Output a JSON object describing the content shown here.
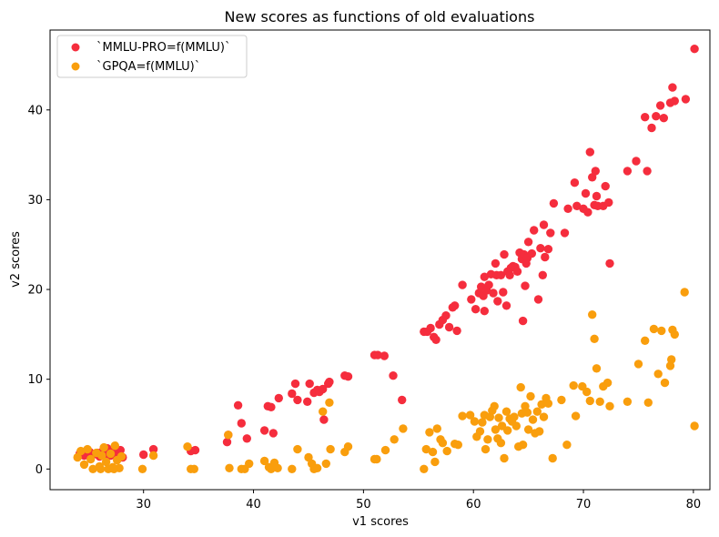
{
  "chart_data": {
    "type": "scatter",
    "title": "New scores as functions of old evaluations",
    "xlabel": "v1 scores",
    "ylabel": "v2 scores",
    "xlim": [
      21.5,
      81.5
    ],
    "ylim": [
      -2.3,
      48.9
    ],
    "xticks": [
      30,
      40,
      50,
      60,
      70,
      80
    ],
    "yticks": [
      0,
      10,
      20,
      30,
      40
    ],
    "grid": false,
    "legend_position": "top-left",
    "series": [
      {
        "name": "`MMLU-PRO=f(MMLU)`",
        "color": "#f52d3d",
        "points": [
          [
            24.2,
            1.7
          ],
          [
            24.6,
            1.5
          ],
          [
            25.1,
            1.9
          ],
          [
            25.4,
            1.6
          ],
          [
            25.8,
            1.8
          ],
          [
            26.0,
            1.4
          ],
          [
            26.3,
            2.0
          ],
          [
            26.5,
            1.7
          ],
          [
            26.7,
            2.3
          ],
          [
            27.0,
            1.5
          ],
          [
            27.2,
            1.9
          ],
          [
            27.6,
            1.4
          ],
          [
            27.9,
            2.1
          ],
          [
            28.1,
            1.3
          ],
          [
            30.0,
            1.6
          ],
          [
            30.9,
            2.2
          ],
          [
            34.3,
            2.0
          ],
          [
            34.7,
            2.1
          ],
          [
            37.6,
            3.0
          ],
          [
            37.7,
            3.8
          ],
          [
            38.6,
            7.1
          ],
          [
            38.9,
            5.1
          ],
          [
            39.4,
            3.4
          ],
          [
            41.0,
            4.3
          ],
          [
            41.3,
            7.0
          ],
          [
            41.6,
            6.9
          ],
          [
            41.8,
            4.0
          ],
          [
            42.3,
            7.9
          ],
          [
            43.5,
            8.4
          ],
          [
            43.8,
            9.5
          ],
          [
            44.0,
            7.7
          ],
          [
            44.9,
            7.5
          ],
          [
            45.1,
            9.5
          ],
          [
            45.5,
            8.5
          ],
          [
            45.8,
            8.8
          ],
          [
            46.0,
            8.6
          ],
          [
            46.3,
            8.9
          ],
          [
            46.4,
            5.5
          ],
          [
            46.8,
            9.5
          ],
          [
            46.9,
            9.7
          ],
          [
            48.3,
            10.4
          ],
          [
            48.6,
            10.3
          ],
          [
            51.0,
            12.7
          ],
          [
            51.3,
            12.7
          ],
          [
            51.9,
            12.6
          ],
          [
            52.7,
            10.4
          ],
          [
            53.5,
            7.7
          ],
          [
            55.5,
            15.3
          ],
          [
            55.8,
            15.3
          ],
          [
            56.1,
            15.7
          ],
          [
            56.4,
            14.7
          ],
          [
            56.6,
            14.4
          ],
          [
            56.9,
            16.1
          ],
          [
            57.2,
            16.6
          ],
          [
            57.5,
            17.1
          ],
          [
            57.8,
            15.8
          ],
          [
            58.1,
            18.0
          ],
          [
            58.3,
            18.2
          ],
          [
            58.5,
            15.4
          ],
          [
            59.0,
            20.5
          ],
          [
            59.8,
            18.9
          ],
          [
            60.2,
            17.8
          ],
          [
            60.5,
            19.6
          ],
          [
            60.7,
            20.3
          ],
          [
            60.9,
            19.3
          ],
          [
            61.0,
            21.4
          ],
          [
            61.0,
            17.6
          ],
          [
            61.2,
            19.9
          ],
          [
            61.4,
            20.5
          ],
          [
            61.6,
            21.7
          ],
          [
            61.8,
            19.6
          ],
          [
            62.0,
            22.9
          ],
          [
            62.1,
            21.6
          ],
          [
            62.2,
            18.7
          ],
          [
            62.5,
            21.6
          ],
          [
            62.7,
            19.7
          ],
          [
            62.8,
            23.9
          ],
          [
            63.0,
            18.2
          ],
          [
            63.1,
            22.0
          ],
          [
            63.3,
            21.6
          ],
          [
            63.4,
            22.4
          ],
          [
            63.6,
            22.6
          ],
          [
            63.8,
            22.5
          ],
          [
            64.0,
            22.0
          ],
          [
            64.2,
            24.1
          ],
          [
            64.4,
            23.4
          ],
          [
            64.5,
            16.5
          ],
          [
            64.6,
            23.9
          ],
          [
            64.7,
            20.4
          ],
          [
            64.8,
            22.9
          ],
          [
            64.9,
            23.5
          ],
          [
            65.0,
            25.3
          ],
          [
            65.3,
            24.0
          ],
          [
            65.5,
            26.6
          ],
          [
            65.9,
            18.9
          ],
          [
            66.1,
            24.6
          ],
          [
            66.3,
            21.6
          ],
          [
            66.4,
            27.2
          ],
          [
            66.5,
            23.6
          ],
          [
            66.8,
            24.5
          ],
          [
            67.0,
            26.3
          ],
          [
            67.3,
            29.6
          ],
          [
            68.3,
            26.3
          ],
          [
            68.6,
            29.0
          ],
          [
            69.2,
            31.9
          ],
          [
            69.4,
            29.3
          ],
          [
            70.0,
            29.0
          ],
          [
            70.2,
            30.7
          ],
          [
            70.4,
            28.6
          ],
          [
            70.6,
            35.3
          ],
          [
            70.8,
            32.5
          ],
          [
            71.0,
            29.4
          ],
          [
            71.1,
            33.2
          ],
          [
            71.2,
            30.4
          ],
          [
            71.3,
            29.3
          ],
          [
            71.8,
            29.3
          ],
          [
            72.0,
            31.5
          ],
          [
            72.3,
            29.7
          ],
          [
            72.4,
            22.9
          ],
          [
            74.0,
            33.2
          ],
          [
            74.8,
            34.3
          ],
          [
            75.6,
            39.2
          ],
          [
            75.8,
            33.2
          ],
          [
            76.2,
            38.0
          ],
          [
            76.6,
            39.3
          ],
          [
            77.0,
            40.5
          ],
          [
            77.3,
            39.1
          ],
          [
            77.9,
            40.8
          ],
          [
            78.1,
            42.5
          ],
          [
            78.3,
            41.0
          ],
          [
            79.3,
            41.2
          ],
          [
            80.1,
            46.8
          ]
        ]
      },
      {
        "name": "`GPQA=f(MMLU)`",
        "color": "#f99e0d",
        "points": [
          [
            24.0,
            1.3
          ],
          [
            24.3,
            2.0
          ],
          [
            24.6,
            0.5
          ],
          [
            24.9,
            2.2
          ],
          [
            25.2,
            1.1
          ],
          [
            25.4,
            0.0
          ],
          [
            25.7,
            1.8
          ],
          [
            26.0,
            0.3
          ],
          [
            26.2,
            1.5
          ],
          [
            26.4,
            2.4
          ],
          [
            26.6,
            0.8
          ],
          [
            26.8,
            0.0
          ],
          [
            27.0,
            1.7
          ],
          [
            27.2,
            0.2
          ],
          [
            27.4,
            2.6
          ],
          [
            27.6,
            1.0
          ],
          [
            27.8,
            0.1
          ],
          [
            28.0,
            1.4
          ],
          [
            26.1,
            0.0
          ],
          [
            27.3,
            0.0
          ],
          [
            29.9,
            0.0
          ],
          [
            30.9,
            1.5
          ],
          [
            34.0,
            2.5
          ],
          [
            34.3,
            0.0
          ],
          [
            34.6,
            0.0
          ],
          [
            37.7,
            3.8
          ],
          [
            37.8,
            0.1
          ],
          [
            38.9,
            0.0
          ],
          [
            39.2,
            0.0
          ],
          [
            39.6,
            0.6
          ],
          [
            41.0,
            0.9
          ],
          [
            41.4,
            0.2
          ],
          [
            41.6,
            0.0
          ],
          [
            41.9,
            0.7
          ],
          [
            42.2,
            0.1
          ],
          [
            43.5,
            0.0
          ],
          [
            44.0,
            2.2
          ],
          [
            45.0,
            1.3
          ],
          [
            45.3,
            0.6
          ],
          [
            45.5,
            0.0
          ],
          [
            45.8,
            0.1
          ],
          [
            46.3,
            6.4
          ],
          [
            46.6,
            0.6
          ],
          [
            46.9,
            7.4
          ],
          [
            47.0,
            2.2
          ],
          [
            48.3,
            1.9
          ],
          [
            48.6,
            2.5
          ],
          [
            51.0,
            1.1
          ],
          [
            51.2,
            1.1
          ],
          [
            52.0,
            2.1
          ],
          [
            52.8,
            3.3
          ],
          [
            53.6,
            4.5
          ],
          [
            55.5,
            0.0
          ],
          [
            55.7,
            2.2
          ],
          [
            56.0,
            4.1
          ],
          [
            56.3,
            1.9
          ],
          [
            56.5,
            0.8
          ],
          [
            56.7,
            4.5
          ],
          [
            57.0,
            3.3
          ],
          [
            57.2,
            2.9
          ],
          [
            57.6,
            2.0
          ],
          [
            58.3,
            2.8
          ],
          [
            58.6,
            2.7
          ],
          [
            59.0,
            5.9
          ],
          [
            59.7,
            6.0
          ],
          [
            60.1,
            5.3
          ],
          [
            60.3,
            3.6
          ],
          [
            60.6,
            4.2
          ],
          [
            60.8,
            5.2
          ],
          [
            61.0,
            6.0
          ],
          [
            61.1,
            2.2
          ],
          [
            61.3,
            3.3
          ],
          [
            61.5,
            5.8
          ],
          [
            61.7,
            6.5
          ],
          [
            61.9,
            7.0
          ],
          [
            62.0,
            4.4
          ],
          [
            62.2,
            3.4
          ],
          [
            62.3,
            5.7
          ],
          [
            62.5,
            2.9
          ],
          [
            62.6,
            4.8
          ],
          [
            62.8,
            1.2
          ],
          [
            63.0,
            6.4
          ],
          [
            63.1,
            4.3
          ],
          [
            63.3,
            5.6
          ],
          [
            63.5,
            5.3
          ],
          [
            63.7,
            5.8
          ],
          [
            63.9,
            4.8
          ],
          [
            64.1,
            2.5
          ],
          [
            64.3,
            9.1
          ],
          [
            64.4,
            6.2
          ],
          [
            64.5,
            2.7
          ],
          [
            64.7,
            7.0
          ],
          [
            64.9,
            6.3
          ],
          [
            65.0,
            4.4
          ],
          [
            65.2,
            8.1
          ],
          [
            65.4,
            5.5
          ],
          [
            65.6,
            4.0
          ],
          [
            65.8,
            6.4
          ],
          [
            66.0,
            4.2
          ],
          [
            66.2,
            7.2
          ],
          [
            66.4,
            5.8
          ],
          [
            66.6,
            7.9
          ],
          [
            66.8,
            7.3
          ],
          [
            67.2,
            1.2
          ],
          [
            68.0,
            7.7
          ],
          [
            68.5,
            2.7
          ],
          [
            69.1,
            9.3
          ],
          [
            69.3,
            5.9
          ],
          [
            69.9,
            9.2
          ],
          [
            70.3,
            8.6
          ],
          [
            70.6,
            7.6
          ],
          [
            70.8,
            17.2
          ],
          [
            71.0,
            14.5
          ],
          [
            71.2,
            11.2
          ],
          [
            71.5,
            7.5
          ],
          [
            71.8,
            9.2
          ],
          [
            72.2,
            9.6
          ],
          [
            72.4,
            7.0
          ],
          [
            74.0,
            7.5
          ],
          [
            75.0,
            11.7
          ],
          [
            75.6,
            14.3
          ],
          [
            75.9,
            7.4
          ],
          [
            76.4,
            15.6
          ],
          [
            76.8,
            10.6
          ],
          [
            77.1,
            15.4
          ],
          [
            77.4,
            9.6
          ],
          [
            77.9,
            11.5
          ],
          [
            78.0,
            12.2
          ],
          [
            78.1,
            15.5
          ],
          [
            78.3,
            15.0
          ],
          [
            79.2,
            19.7
          ],
          [
            80.1,
            4.8
          ]
        ]
      }
    ]
  }
}
